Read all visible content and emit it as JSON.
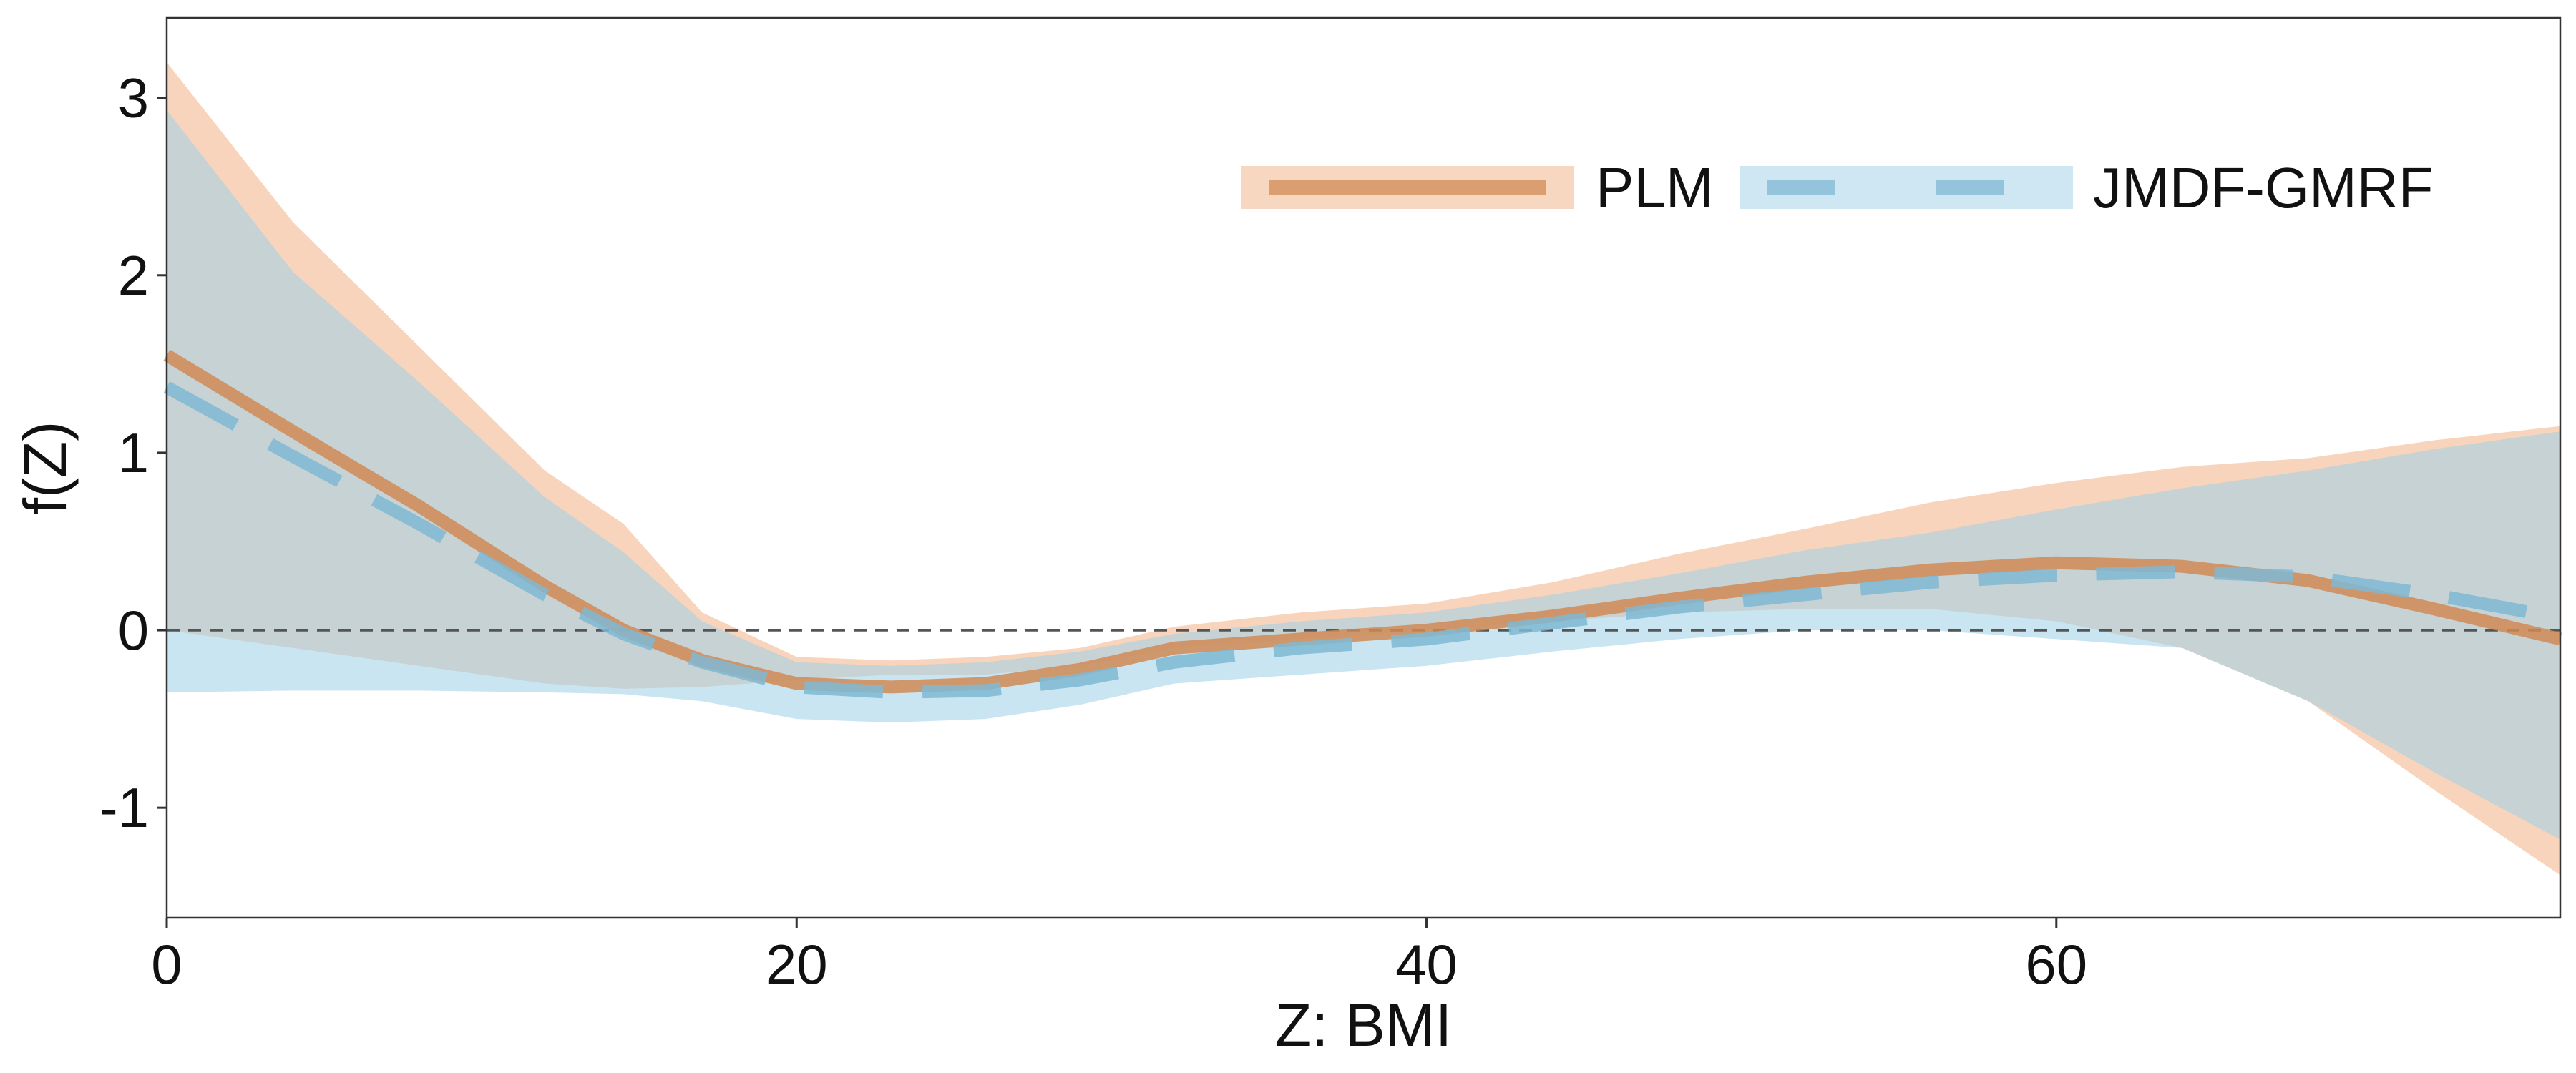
{
  "chart_data": {
    "type": "line",
    "title": "",
    "xlabel": "Z: BMI",
    "ylabel": "f(Z)",
    "xlim": [
      0,
      76
    ],
    "ylim": [
      -1.62,
      3.45
    ],
    "xticks": [
      0,
      20,
      40,
      60
    ],
    "xtick_labels": [
      "0",
      "20",
      "40",
      "60"
    ],
    "yticks": [
      -1,
      0,
      1,
      2,
      3
    ],
    "ytick_labels": [
      "-1",
      "0",
      "1",
      "2",
      "3"
    ],
    "reference_line": {
      "y": 0,
      "style": "dashed"
    },
    "grid": false,
    "legend_position": "top-right",
    "x": [
      0,
      4,
      8,
      12,
      14.5,
      17,
      20,
      23,
      26,
      29,
      32,
      36,
      40,
      44,
      48,
      52,
      56,
      60,
      64,
      68,
      72,
      76
    ],
    "series": [
      {
        "name": "PLM",
        "color": "#d08b55",
        "band_color": "#f5c6a5",
        "line_style": "solid",
        "values": [
          1.55,
          1.12,
          0.7,
          0.25,
          0.0,
          -0.17,
          -0.3,
          -0.32,
          -0.3,
          -0.22,
          -0.1,
          -0.05,
          0.0,
          0.08,
          0.18,
          0.27,
          0.34,
          0.38,
          0.36,
          0.28,
          0.12,
          -0.05
        ],
        "lower": [
          -0.0,
          -0.1,
          -0.2,
          -0.3,
          -0.33,
          -0.32,
          -0.28,
          -0.25,
          -0.25,
          -0.2,
          -0.1,
          -0.05,
          0.0,
          0.05,
          0.1,
          0.12,
          0.12,
          0.05,
          -0.1,
          -0.4,
          -0.9,
          -1.38
        ],
        "upper": [
          3.2,
          2.3,
          1.6,
          0.9,
          0.6,
          0.1,
          -0.15,
          -0.17,
          -0.15,
          -0.1,
          0.02,
          0.1,
          0.15,
          0.27,
          0.43,
          0.57,
          0.72,
          0.83,
          0.92,
          0.97,
          1.07,
          1.15
        ]
      },
      {
        "name": "JMDF-GMRF",
        "color": "#7fb8d4",
        "band_color": "#9fd0e8",
        "line_style": "dashed",
        "values": [
          1.37,
          0.98,
          0.6,
          0.2,
          -0.02,
          -0.18,
          -0.32,
          -0.35,
          -0.34,
          -0.28,
          -0.18,
          -0.1,
          -0.05,
          0.04,
          0.13,
          0.2,
          0.27,
          0.31,
          0.33,
          0.3,
          0.2,
          0.07
        ],
        "lower": [
          -0.35,
          -0.34,
          -0.34,
          -0.35,
          -0.36,
          -0.4,
          -0.5,
          -0.52,
          -0.5,
          -0.42,
          -0.3,
          -0.25,
          -0.2,
          -0.12,
          -0.05,
          -0.0,
          -0.0,
          -0.05,
          -0.1,
          -0.4,
          -0.8,
          -1.18
        ],
        "upper": [
          2.93,
          2.02,
          1.4,
          0.75,
          0.44,
          0.05,
          -0.18,
          -0.2,
          -0.18,
          -0.12,
          -0.02,
          0.05,
          0.1,
          0.2,
          0.32,
          0.45,
          0.55,
          0.68,
          0.8,
          0.9,
          1.02,
          1.12
        ]
      }
    ]
  }
}
